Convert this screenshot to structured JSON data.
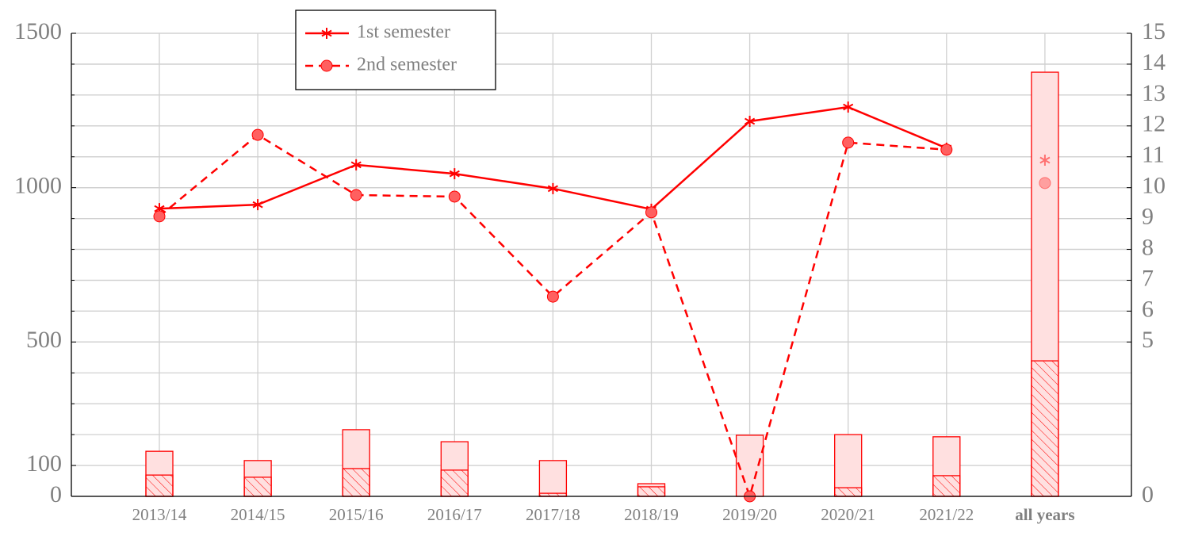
{
  "chart_data": {
    "type": "bar-line",
    "categories": [
      "2013/14",
      "2014/15",
      "2015/16",
      "2016/17",
      "2017/18",
      "2018/19",
      "2019/20",
      "2020/21",
      "2021/22",
      "all years"
    ],
    "bars": [
      {
        "style": "filled",
        "color": "#ff0000",
        "values": [
          146,
          116,
          216,
          177,
          116,
          41,
          198,
          200,
          193,
          1374
        ]
      },
      {
        "style": "hatched",
        "color": "#ff0000",
        "values": [
          69,
          62,
          90,
          85,
          10,
          31,
          0,
          28,
          67,
          439
        ]
      }
    ],
    "series": [
      {
        "name": "1st semester",
        "color": "#ff0000",
        "marker": "star",
        "dash": false,
        "axis": "y2",
        "values": [
          9.32,
          9.45,
          10.74,
          10.45,
          9.97,
          9.3,
          12.15,
          12.61,
          11.28,
          10.89
        ]
      },
      {
        "name": "2nd semester",
        "color": "#ff0000",
        "marker": "circle",
        "dash": true,
        "axis": "y2",
        "values": [
          9.07,
          11.71,
          9.76,
          9.71,
          6.47,
          9.2,
          0,
          11.46,
          11.23,
          10.15
        ]
      }
    ],
    "line_break_before_last": true,
    "ylim": [
      0,
      1500
    ],
    "yticks": [
      0,
      100,
      500,
      1000,
      1500
    ],
    "yminorticks": [
      200,
      300,
      400,
      600,
      700,
      800,
      900,
      1100,
      1200,
      1300,
      1400
    ],
    "y2lim": [
      0,
      15
    ],
    "y2ticks": [
      0,
      5,
      6,
      7,
      8,
      9,
      10,
      11,
      12,
      13,
      14,
      15
    ],
    "grid": true,
    "legend": "top-left"
  }
}
